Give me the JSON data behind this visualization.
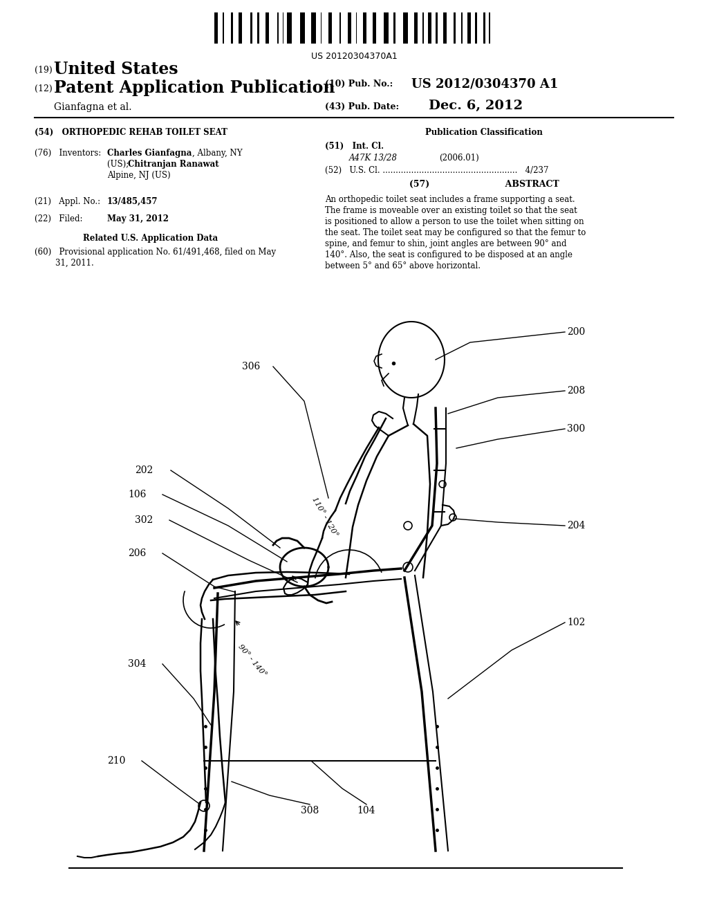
{
  "bg_color": "#ffffff",
  "page_width": 10.24,
  "page_height": 13.2,
  "barcode_text": "US 20120304370A1",
  "header": {
    "line19_num": "(19)",
    "line19_text": "United States",
    "line12_num": "(12)",
    "line12_text": "Patent Application Publication",
    "pub_no_num": "(10) Pub. No.:",
    "pub_no_val": "US 2012/0304370 A1",
    "inventor_sub": "Gianfagna et al.",
    "pub_date_num": "(43) Pub. Date:",
    "pub_date_val": "Dec. 6, 2012"
  },
  "left_col": {
    "title": "(54)   ORTHOPEDIC REHAB TOILET SEAT",
    "inv_label": "(76)   Inventors:",
    "inv_name1": "Charles Gianfagna",
    "inv_rest1": ", Albany, NY",
    "inv_line2": "(US); ",
    "inv_name2": "Chitranjan Ranawat",
    "inv_line3": "Alpine, NJ (US)",
    "appl_label": "(21)   Appl. No.:",
    "appl_val": "13/485,457",
    "filed_label": "(22)   Filed:",
    "filed_val": "May 31, 2012",
    "related_hdr": "Related U.S. Application Data",
    "prov_text1": "(60)   Provisional application No. 61/491,468, filed on May",
    "prov_text2": "        31, 2011."
  },
  "right_col": {
    "pub_class": "Publication Classification",
    "int_cl_label": "(51)   Int. Cl.",
    "int_cl_class": "A47K 13/28",
    "int_cl_year": "(2006.01)",
    "us_cl": "(52)   U.S. Cl. ....................................................   4/237",
    "abstract_hdr": "(57)                         ABSTRACT",
    "abstract_lines": [
      "An orthopedic toilet seat includes a frame supporting a seat.",
      "The frame is moveable over an existing toilet so that the seat",
      "is positioned to allow a person to use the toilet when sitting on",
      "the seat. The toilet seat may be configured so that the femur to",
      "spine, and femur to shin, joint angles are between 90° and",
      "140°. Also, the seat is configured to be disposed at an angle",
      "between 5° and 65° above horizontal."
    ]
  }
}
